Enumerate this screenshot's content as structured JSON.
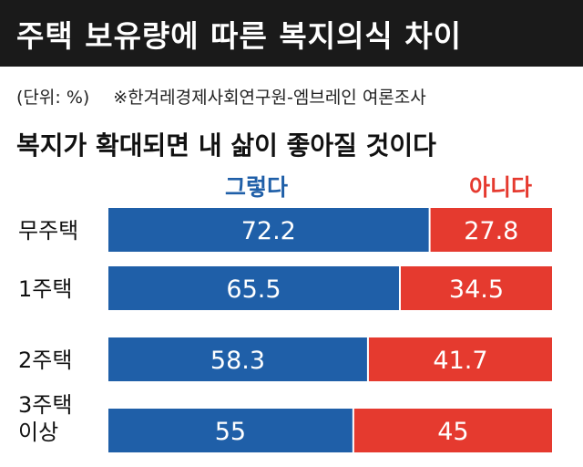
{
  "chart_data": {
    "type": "bar",
    "orientation": "horizontal",
    "stacked": true,
    "title": "주택 보유량에 따른 복지의식 차이",
    "unit": "(단위: %)",
    "source": "※한겨레경제사회연구원-엠브레인 여론조사",
    "subtitle": "복지가 확대되면 내 삶이 좋아질 것이다",
    "categories": [
      [
        "무주택"
      ],
      [
        "1주택"
      ],
      [
        "2주택"
      ],
      [
        "3주택",
        "이상"
      ]
    ],
    "xlim": [
      0,
      100
    ],
    "series": [
      {
        "name": "그렇다",
        "values": [
          72.2,
          65.5,
          58.3,
          55
        ],
        "color": "#1f5fa8"
      },
      {
        "name": "아니다",
        "values": [
          27.8,
          34.5,
          41.7,
          45
        ],
        "color": "#e53a2f"
      }
    ],
    "legend": "top"
  }
}
